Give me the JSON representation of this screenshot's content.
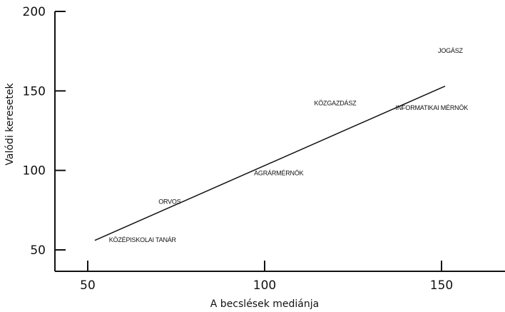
{
  "chart_data": {
    "type": "scatter",
    "xlabel": "A becslések mediánja",
    "ylabel": "Valódi keresetek",
    "xlim": [
      40,
      170
    ],
    "ylim": [
      42,
      200
    ],
    "x_ticks": [
      50,
      100,
      150
    ],
    "y_ticks": [
      50,
      100,
      150,
      200
    ],
    "grid": false,
    "points": [
      {
        "label": "KÖZÉPISKOLAI TANÁR",
        "x": 56,
        "y": 55
      },
      {
        "label": "ORVOS",
        "x": 70,
        "y": 79
      },
      {
        "label": "AGRÁRMÉRNÖK",
        "x": 97,
        "y": 97
      },
      {
        "label": "KÖZGAZDÁSZ",
        "x": 114,
        "y": 141
      },
      {
        "label": "INFORMATIKAI MÉRNÖK",
        "x": 137,
        "y": 138
      },
      {
        "label": "JOGÁSZ",
        "x": 149,
        "y": 174
      }
    ],
    "trend_line": {
      "x": [
        52,
        151
      ],
      "y": [
        56,
        153
      ]
    }
  }
}
